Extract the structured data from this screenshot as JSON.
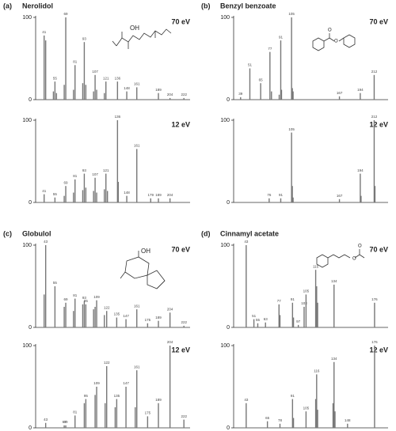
{
  "chart_data": [
    {
      "type": "bar",
      "panel": "(a)",
      "title": "Nerolidol",
      "subtitle": "70 eV",
      "annotations": [
        "OH"
      ],
      "x": [
        41,
        43,
        53,
        55,
        57,
        67,
        69,
        79,
        81,
        91,
        93,
        95,
        105,
        107,
        109,
        119,
        121,
        136,
        148,
        161,
        189,
        204,
        222
      ],
      "x_labels": [
        41,
        null,
        null,
        55,
        null,
        null,
        69,
        null,
        81,
        null,
        93,
        null,
        null,
        107,
        null,
        null,
        121,
        136,
        148,
        161,
        189,
        204,
        222
      ],
      "values": [
        78,
        72,
        10,
        22,
        8,
        18,
        100,
        12,
        42,
        20,
        70,
        18,
        10,
        30,
        12,
        8,
        22,
        22,
        10,
        15,
        8,
        2,
        2
      ],
      "xlim": [
        30,
        230
      ],
      "ylim": [
        0,
        100
      ],
      "yticks": [
        0,
        100
      ],
      "color": "#777777"
    },
    {
      "type": "bar",
      "subtitle": "12 eV",
      "x": [
        41,
        55,
        67,
        69,
        79,
        81,
        91,
        93,
        95,
        105,
        107,
        109,
        119,
        121,
        123,
        136,
        137,
        148,
        161,
        179,
        189,
        204
      ],
      "x_labels": [
        41,
        55,
        null,
        69,
        null,
        81,
        null,
        93,
        null,
        null,
        107,
        null,
        null,
        121,
        null,
        136,
        null,
        148,
        161,
        179,
        189,
        204
      ],
      "values": [
        10,
        6,
        8,
        20,
        12,
        28,
        15,
        35,
        18,
        14,
        30,
        12,
        16,
        35,
        14,
        100,
        25,
        8,
        65,
        5,
        5,
        5
      ],
      "xlim": [
        30,
        230
      ],
      "ylim": [
        0,
        100
      ],
      "yticks": [
        0,
        100
      ],
      "color": "#777777"
    },
    {
      "type": "bar",
      "panel": "(b)",
      "title": "Benzyl benzoate",
      "subtitle": "70 eV",
      "annotations": [
        "O",
        "O"
      ],
      "x": [
        39,
        51,
        65,
        77,
        79,
        89,
        91,
        92,
        105,
        106,
        107,
        167,
        194,
        212
      ],
      "x_labels": [
        39,
        51,
        65,
        77,
        null,
        null,
        91,
        null,
        105,
        null,
        null,
        167,
        194,
        212
      ],
      "values": [
        3,
        38,
        20,
        58,
        10,
        6,
        72,
        12,
        100,
        14,
        10,
        4,
        8,
        30
      ],
      "xlim": [
        30,
        230
      ],
      "ylim": [
        0,
        100
      ],
      "yticks": [
        0,
        100
      ],
      "color": "#777777"
    },
    {
      "type": "bar",
      "subtitle": "12 eV",
      "x": [
        76,
        91,
        105,
        106,
        107,
        167,
        194,
        195,
        212,
        213
      ],
      "x_labels": [
        76,
        91,
        105,
        null,
        null,
        167,
        194,
        null,
        212,
        null
      ],
      "values": [
        5,
        5,
        85,
        20,
        6,
        4,
        35,
        8,
        100,
        20
      ],
      "xlim": [
        30,
        230
      ],
      "ylim": [
        0,
        100
      ],
      "yticks": [
        0,
        100
      ],
      "color": "#777777"
    },
    {
      "type": "bar",
      "panel": "(c)",
      "title": "Globulol",
      "subtitle": "70 eV",
      "annotations": [
        "OH"
      ],
      "x": [
        41,
        43,
        55,
        67,
        69,
        79,
        81,
        91,
        93,
        95,
        105,
        107,
        109,
        119,
        122,
        135,
        147,
        161,
        175,
        189,
        204,
        222
      ],
      "x_labels": [
        null,
        43,
        55,
        null,
        69,
        null,
        81,
        null,
        93,
        95,
        null,
        null,
        109,
        null,
        122,
        135,
        147,
        161,
        175,
        189,
        204,
        222
      ],
      "values": [
        40,
        100,
        50,
        25,
        30,
        20,
        35,
        28,
        32,
        28,
        22,
        25,
        33,
        15,
        20,
        12,
        10,
        22,
        5,
        8,
        18,
        2
      ],
      "xlim": [
        30,
        230
      ],
      "ylim": [
        0,
        100
      ],
      "yticks": [
        0,
        100
      ],
      "color": "#777777"
    },
    {
      "type": "bar",
      "subtitle": "12 eV",
      "x": [
        43,
        67,
        69,
        81,
        93,
        95,
        107,
        109,
        120,
        122,
        133,
        135,
        147,
        159,
        161,
        175,
        189,
        204,
        222
      ],
      "x_labels": [
        43,
        67,
        69,
        81,
        null,
        95,
        null,
        109,
        null,
        122,
        null,
        135,
        147,
        null,
        161,
        175,
        189,
        204,
        222
      ],
      "values": [
        6,
        3,
        3,
        15,
        30,
        35,
        40,
        50,
        30,
        75,
        25,
        35,
        50,
        25,
        70,
        14,
        30,
        100,
        10
      ],
      "xlim": [
        30,
        230
      ],
      "ylim": [
        0,
        100
      ],
      "yticks": [
        0,
        100
      ],
      "color": "#777777"
    },
    {
      "type": "bar",
      "panel": "(d)",
      "title": "Cinnamyl acetate",
      "subtitle": "70 eV",
      "annotations": [
        "O",
        "O"
      ],
      "x": [
        43,
        51,
        55,
        63,
        77,
        78,
        91,
        92,
        97,
        103,
        105,
        115,
        116,
        117,
        134,
        176
      ],
      "x_labels": [
        43,
        51,
        55,
        63,
        77,
        null,
        91,
        null,
        97,
        103,
        105,
        115,
        null,
        null,
        134,
        176
      ],
      "values": [
        100,
        10,
        5,
        6,
        28,
        15,
        30,
        12,
        3,
        25,
        40,
        70,
        50,
        30,
        52,
        30
      ],
      "xlim": [
        30,
        190
      ],
      "ylim": [
        0,
        100
      ],
      "yticks": [
        0,
        100
      ],
      "color": "#777777"
    },
    {
      "type": "bar",
      "subtitle": "12 eV",
      "x": [
        43,
        65,
        78,
        91,
        92,
        105,
        115,
        116,
        117,
        133,
        134,
        135,
        148,
        176
      ],
      "x_labels": [
        43,
        65,
        78,
        91,
        null,
        105,
        null,
        116,
        null,
        null,
        134,
        null,
        148,
        176
      ],
      "values": [
        30,
        8,
        5,
        35,
        12,
        20,
        35,
        65,
        22,
        30,
        80,
        20,
        5,
        100
      ],
      "xlim": [
        30,
        190
      ],
      "ylim": [
        0,
        100
      ],
      "yticks": [
        0,
        100
      ],
      "color": "#777777"
    }
  ]
}
